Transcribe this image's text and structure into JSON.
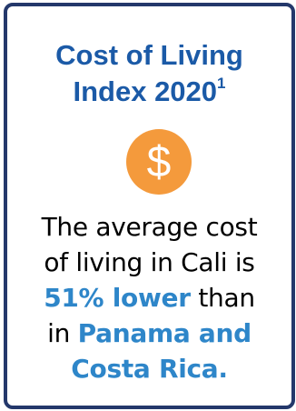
{
  "card": {
    "title_line1": "Cost of Living",
    "title_line2": "Index 2020",
    "title_footnote": "1",
    "icon": "dollar-coin-icon",
    "icon_glyph": "$",
    "body_line1": "The average cost",
    "body_line2": "of living in Cali is",
    "body_highlight1": "51% lower",
    "body_after_highlight1": " than",
    "body_line4_prefix": "in ",
    "body_highlight2a": "Panama and",
    "body_highlight2b": "Costa Rica."
  },
  "colors": {
    "border": "#24386b",
    "title": "#1b5aa7",
    "coin": "#f49a3c",
    "highlight": "#2e86c9"
  }
}
